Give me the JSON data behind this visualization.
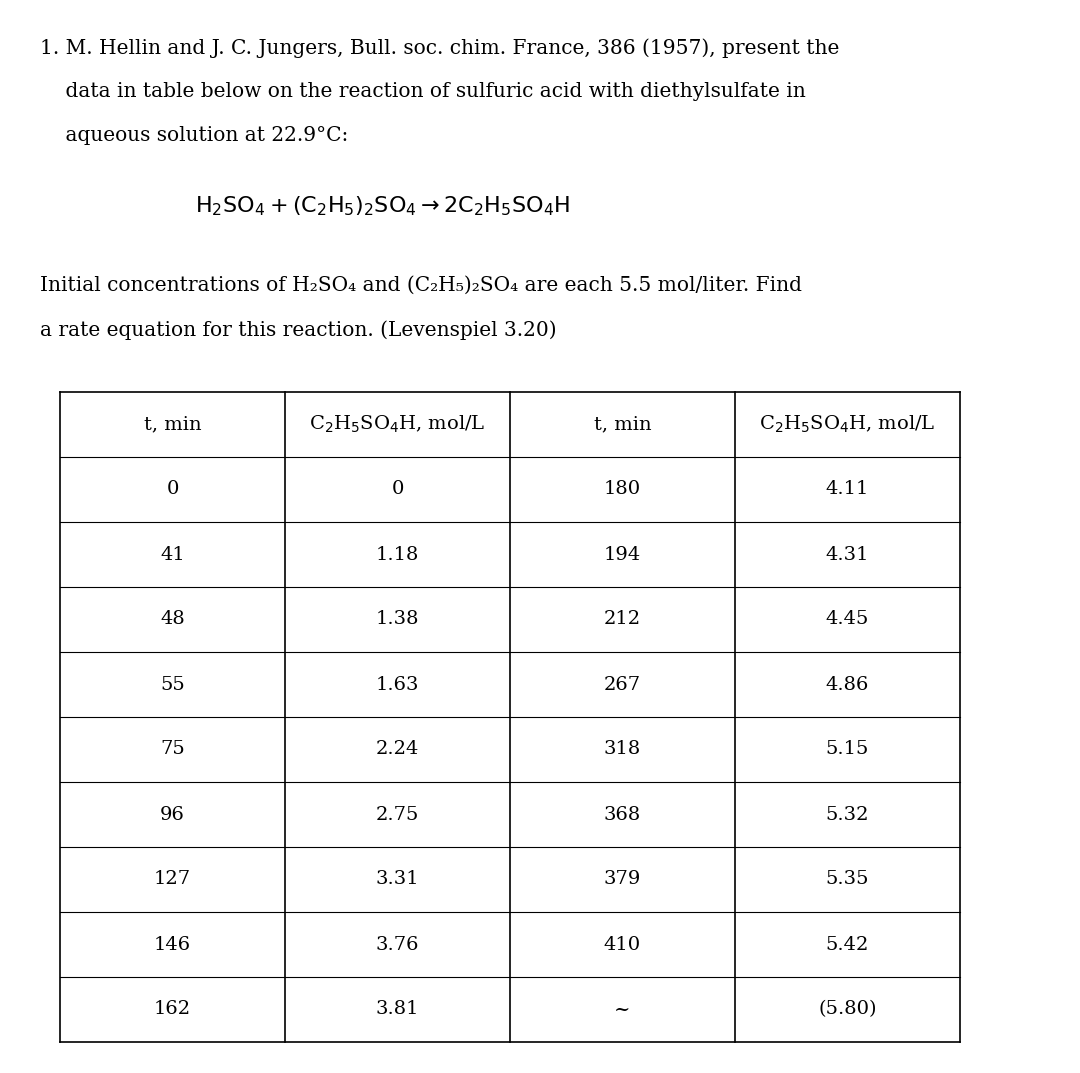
{
  "bg_color": "#ffffff",
  "text_color": "#000000",
  "font_size_body": 14.5,
  "font_size_eq": 15,
  "font_size_header": 14,
  "font_size_table": 14,
  "title_line1": "1. M. Hellin and J. C. Jungers, Bull. soc. chim. France, 386 (1957), present the",
  "title_line2": "    data in table below on the reaction of sulfuric acid with diethylsulfate in",
  "title_line3": "    aqueous solution at 22.9°C:",
  "desc_line1": "Initial concentrations of H₂SO₄ and (C₂H₅)₂SO₄ are each 5.5 mol/liter. Find",
  "desc_line2": "a rate equation for this reaction. (Levenspiel 3.20)",
  "left_t": [
    "0",
    "41",
    "48",
    "55",
    "75",
    "96",
    "127",
    "146",
    "162"
  ],
  "left_c": [
    "0",
    "1.18",
    "1.38",
    "1.63",
    "2.24",
    "2.75",
    "3.31",
    "3.76",
    "3.81"
  ],
  "right_t": [
    "180",
    "194",
    "212",
    "267",
    "318",
    "368",
    "379",
    "410",
    "~"
  ],
  "right_c": [
    "4.11",
    "4.31",
    "4.45",
    "4.86",
    "5.15",
    "5.32",
    "5.35",
    "5.42",
    "(5.80)"
  ]
}
